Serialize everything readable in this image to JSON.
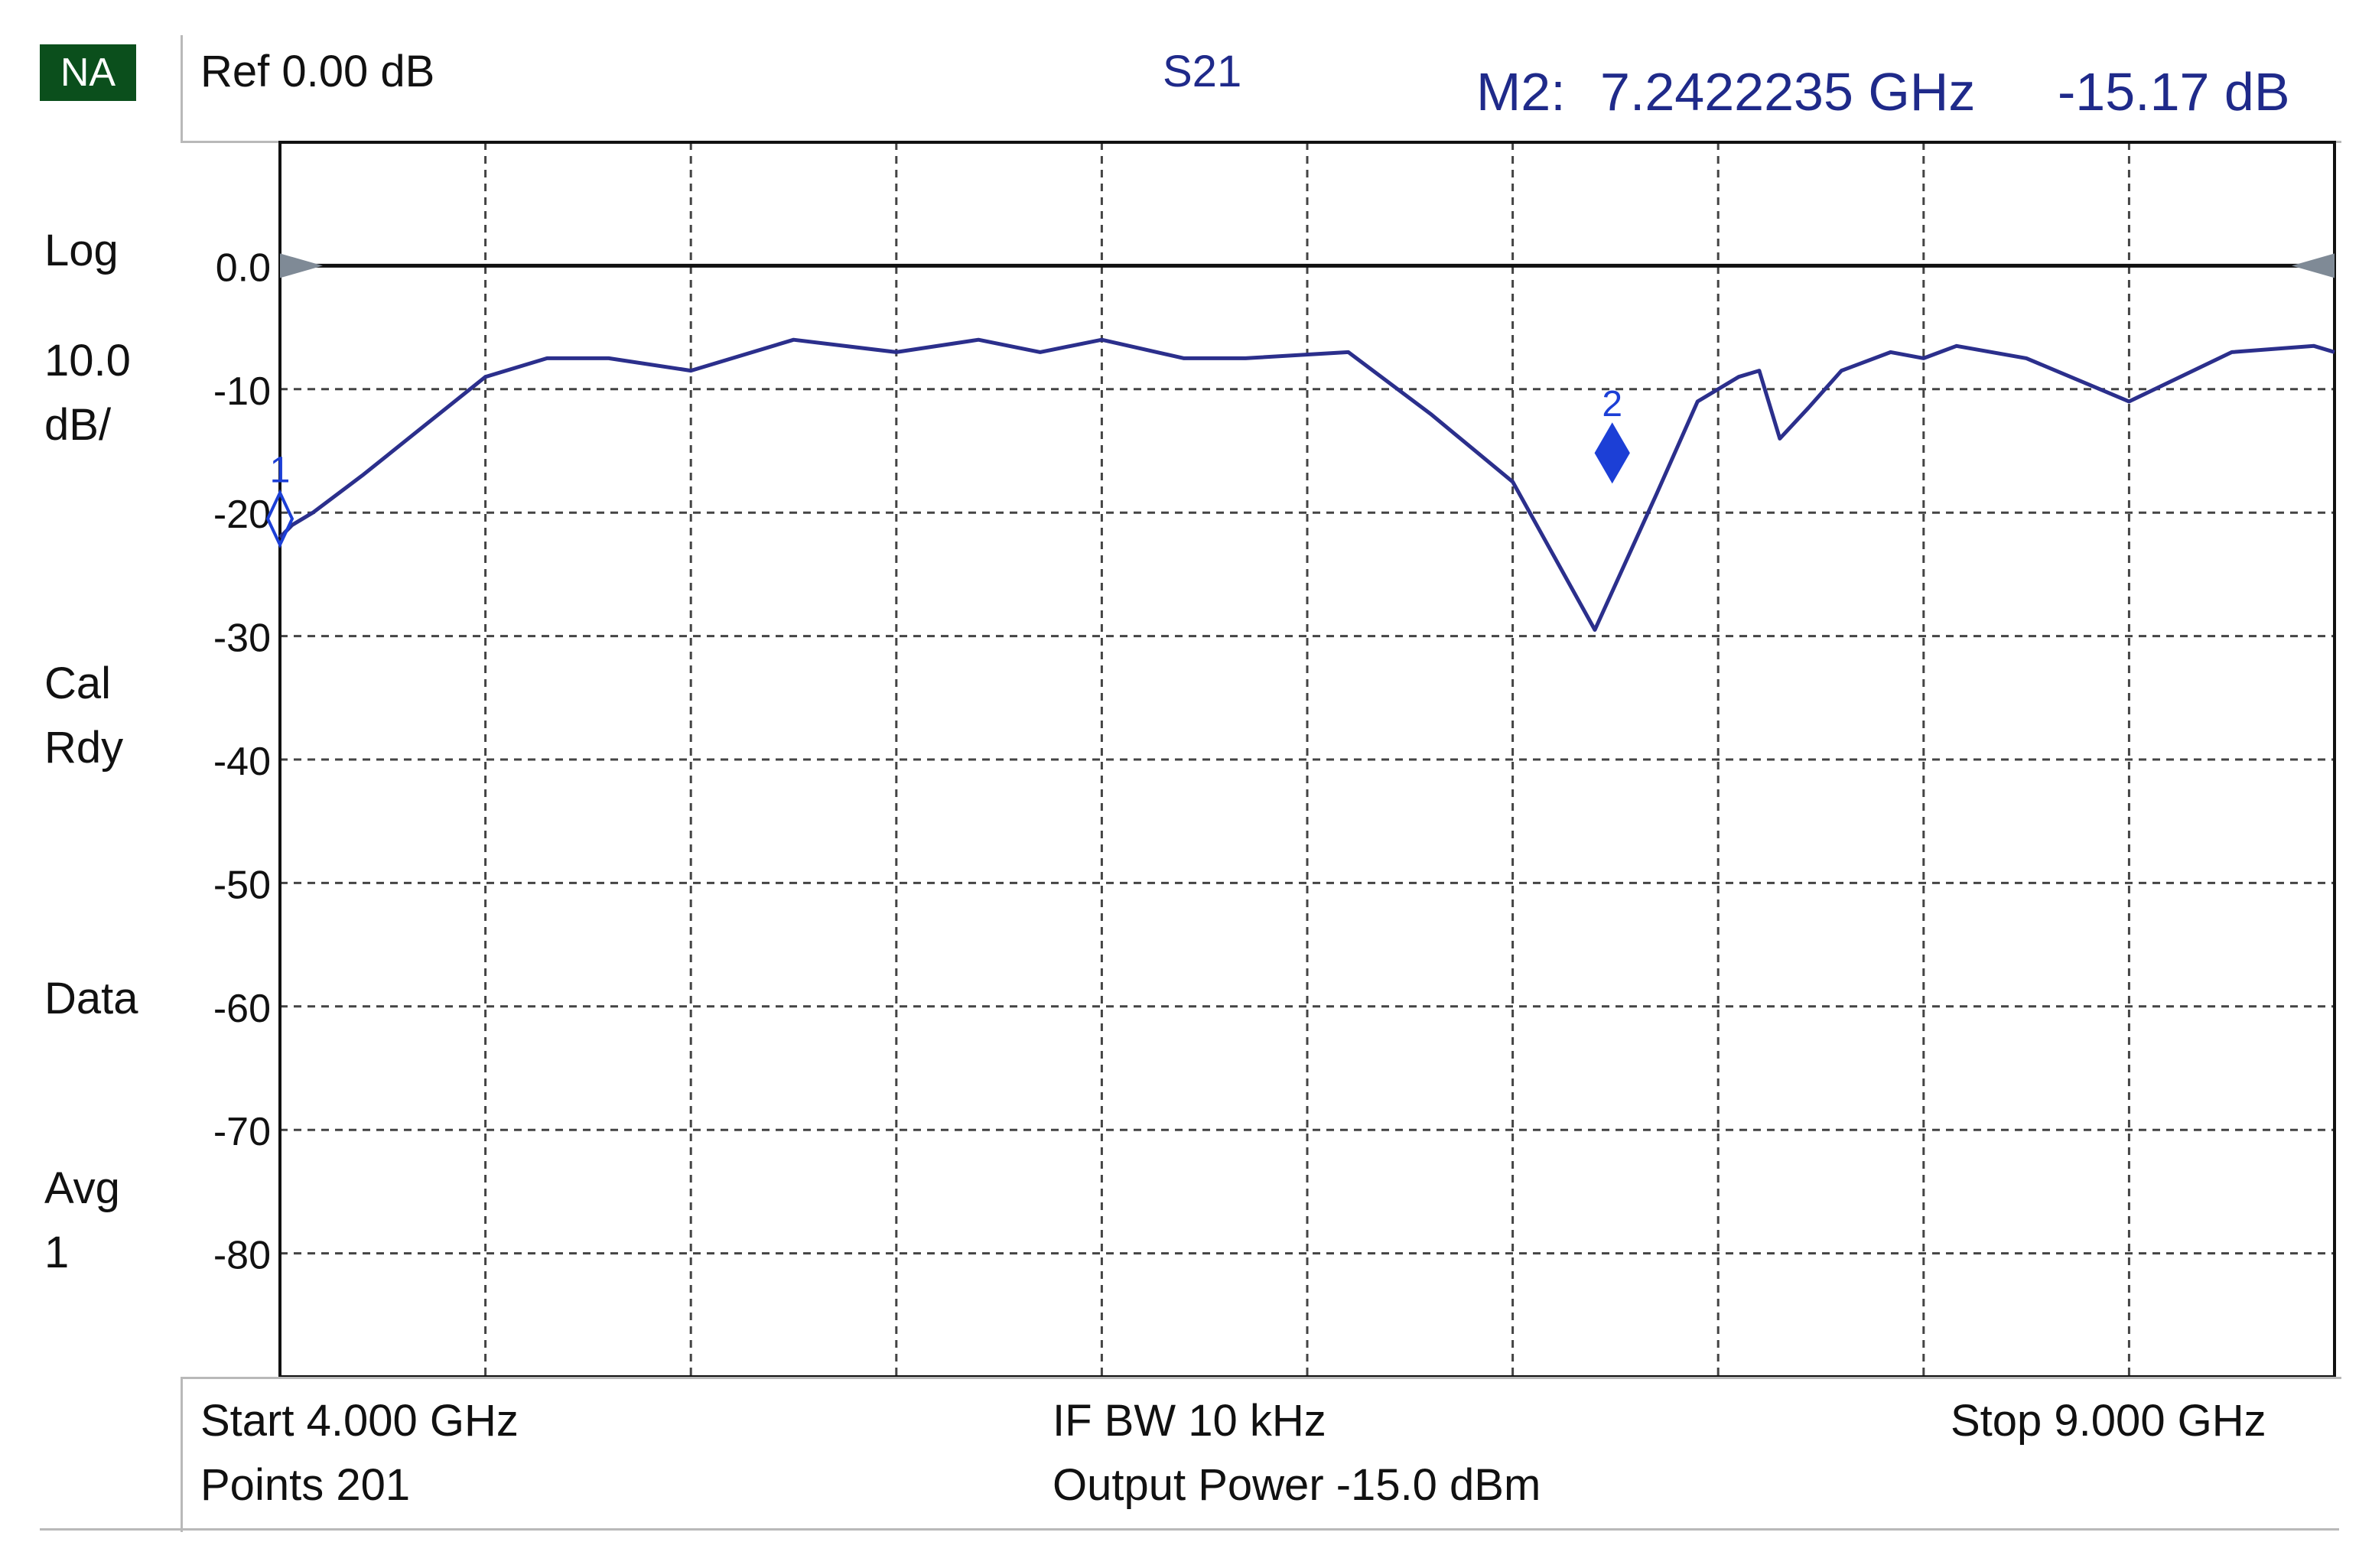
{
  "instrument": {
    "mode_badge": "NA",
    "ref_label": "Ref 0.00 dB",
    "parameter": "S21",
    "marker_readout": {
      "label": "M2:",
      "frequency": "7.2422235 GHz",
      "value": "-15.17 dB"
    }
  },
  "side_panel": {
    "format": "Log",
    "scale_line1": "10.0",
    "scale_line2": "dB/",
    "cal_line1": "Cal",
    "cal_line2": "Rdy",
    "data": "Data",
    "avg_line1": "Avg",
    "avg_line2": "1"
  },
  "footer": {
    "start": "Start 4.000 GHz",
    "ifbw": "IF BW 10 kHz",
    "stop": "Stop 9.000 GHz",
    "points": "Points 201",
    "power": "Output Power -15.0 dBm"
  },
  "colors": {
    "trace": "#2b2f8c",
    "marker": "#1c3fd6",
    "grid": "#444444",
    "reference_line": "#111111",
    "readout_text": "#1f2a8a",
    "badge_bg": "#0b4f1c"
  },
  "chart_data": {
    "type": "line",
    "xlim": [
      4.0,
      9.0
    ],
    "ylim": [
      -90,
      10
    ],
    "xunit": "GHz",
    "yunit": "dB",
    "grid": true,
    "x_divisions": 10,
    "yticks": [
      0,
      -10,
      -20,
      -30,
      -40,
      -50,
      -60,
      -70,
      -80
    ],
    "ytick_labels": [
      "0.0",
      "-10",
      "-20",
      "-30",
      "-40",
      "-50",
      "-60",
      "-70",
      "-80"
    ],
    "reference_level": 0.0,
    "series": [
      {
        "x": [
          4.0,
          4.03,
          4.08,
          4.2,
          4.35,
          4.5,
          4.65,
          4.8,
          5.0,
          5.25,
          5.5,
          5.7,
          5.85,
          6.0,
          6.2,
          6.35,
          6.6,
          6.8,
          7.0,
          7.2,
          7.35,
          7.45,
          7.55,
          7.6,
          7.65,
          7.72,
          7.8,
          7.92,
          8.0,
          8.08,
          8.25,
          8.5,
          8.75,
          8.95,
          9.0
        ],
        "y": [
          -22,
          -21,
          -20,
          -17,
          -13,
          -9,
          -7.5,
          -7.5,
          -8.5,
          -6,
          -7,
          -6,
          -7,
          -6,
          -7.5,
          -7.5,
          -7,
          -12,
          -17.5,
          -29.5,
          -18.5,
          -11,
          -9,
          -8.5,
          -14,
          -11.5,
          -8.5,
          -7,
          -7.5,
          -6.5,
          -7.5,
          -11,
          -7,
          -6.5,
          -7
        ]
      }
    ],
    "markers": [
      {
        "label": "1",
        "x": 4.0,
        "y": -20.5
      },
      {
        "label": "2",
        "x": 7.2422235,
        "y": -15.17
      }
    ]
  }
}
